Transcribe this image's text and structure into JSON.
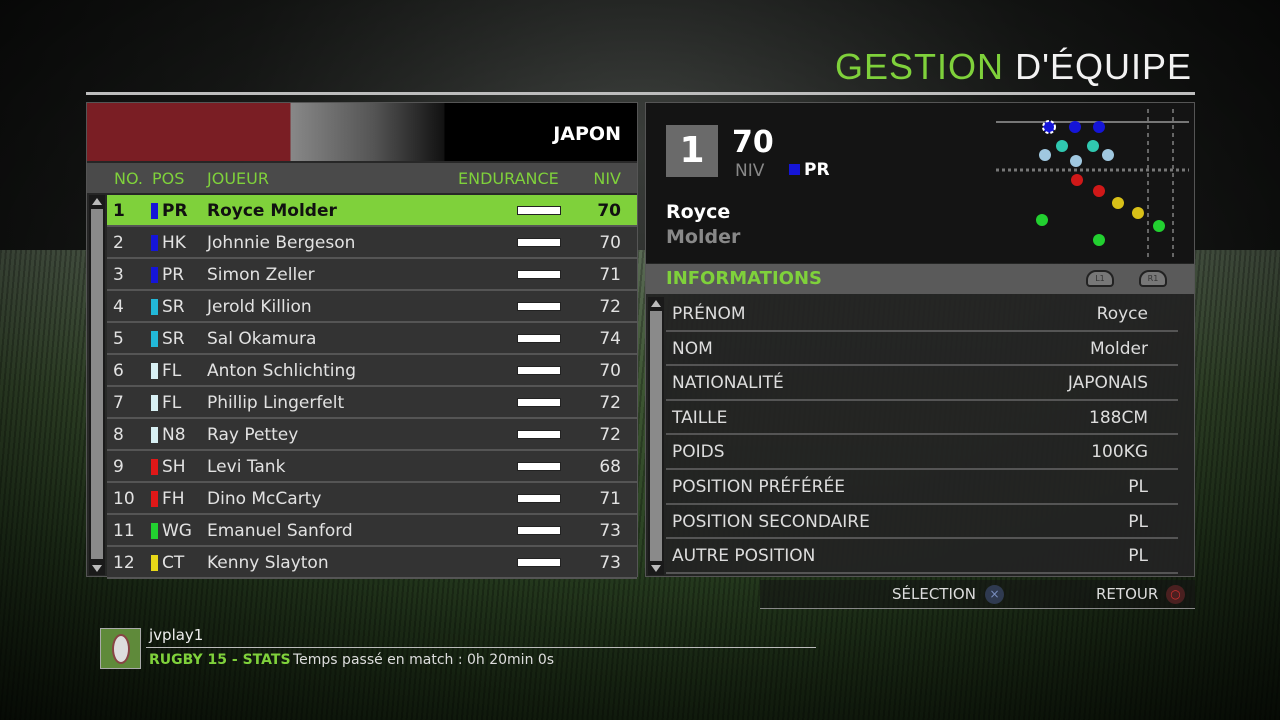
{
  "header": {
    "title_green": "GESTION",
    "title_white": "D'ÉQUIPE"
  },
  "team": {
    "name": "JAPON"
  },
  "columns": {
    "no": "NO.",
    "pos": "POS",
    "player": "JOUEUR",
    "endurance": "ENDURANCE",
    "niv": "NIV"
  },
  "players": [
    {
      "no": "1",
      "pos": "PR",
      "color": "#1515d8",
      "name": "Royce Molder",
      "endurance": 100,
      "niv": "70",
      "selected": true
    },
    {
      "no": "2",
      "pos": "HK",
      "color": "#1515d8",
      "name": "Johnnie Bergeson",
      "endurance": 100,
      "niv": "70"
    },
    {
      "no": "3",
      "pos": "PR",
      "color": "#1515d8",
      "name": "Simon Zeller",
      "endurance": 100,
      "niv": "71"
    },
    {
      "no": "4",
      "pos": "SR",
      "color": "#22b8d8",
      "name": "Jerold Killion",
      "endurance": 100,
      "niv": "72"
    },
    {
      "no": "5",
      "pos": "SR",
      "color": "#22b8d8",
      "name": "Sal Okamura",
      "endurance": 100,
      "niv": "74"
    },
    {
      "no": "6",
      "pos": "FL",
      "color": "#d8f0f4",
      "name": "Anton Schlichting",
      "endurance": 100,
      "niv": "70"
    },
    {
      "no": "7",
      "pos": "FL",
      "color": "#d8f0f4",
      "name": "Phillip Lingerfelt",
      "endurance": 100,
      "niv": "72"
    },
    {
      "no": "8",
      "pos": "N8",
      "color": "#d8f0f4",
      "name": "Ray Pettey",
      "endurance": 100,
      "niv": "72"
    },
    {
      "no": "9",
      "pos": "SH",
      "color": "#e01818",
      "name": "Levi Tank",
      "endurance": 100,
      "niv": "68"
    },
    {
      "no": "10",
      "pos": "FH",
      "color": "#e01818",
      "name": "Dino McCarty",
      "endurance": 100,
      "niv": "71"
    },
    {
      "no": "11",
      "pos": "WG",
      "color": "#22d030",
      "name": "Emanuel Sanford",
      "endurance": 100,
      "niv": "73"
    },
    {
      "no": "12",
      "pos": "CT",
      "color": "#e8d818",
      "name": "Kenny Slayton",
      "endurance": 100,
      "niv": "73"
    }
  ],
  "detail": {
    "number": "1",
    "niv_value": "70",
    "niv_label": "NIV",
    "pos": "PR",
    "first_name": "Royce",
    "last_name": "Molder"
  },
  "info": {
    "title": "INFORMATIONS",
    "l1": "L1",
    "r1": "R1",
    "rows": [
      {
        "label": "PRÉNOM",
        "value": "Royce"
      },
      {
        "label": "NOM",
        "value": "Molder"
      },
      {
        "label": "NATIONALITÉ",
        "value": "JAPONAIS"
      },
      {
        "label": "TAILLE",
        "value": "188CM"
      },
      {
        "label": "POIDS",
        "value": "100KG"
      },
      {
        "label": "POSITION PRÉFÉRÉE",
        "value": "PL"
      },
      {
        "label": "POSITION SECONDAIRE",
        "value": "PL"
      },
      {
        "label": "AUTRE POSITION",
        "value": "PL"
      }
    ]
  },
  "footer": {
    "select": "SÉLECTION",
    "select_icon": "×",
    "back": "RETOUR",
    "back_icon": "○"
  },
  "user": {
    "name": "jvplay1",
    "game": "RUGBY 15 - STATS",
    "stat": "Temps passé en match : 0h 20min 0s"
  }
}
